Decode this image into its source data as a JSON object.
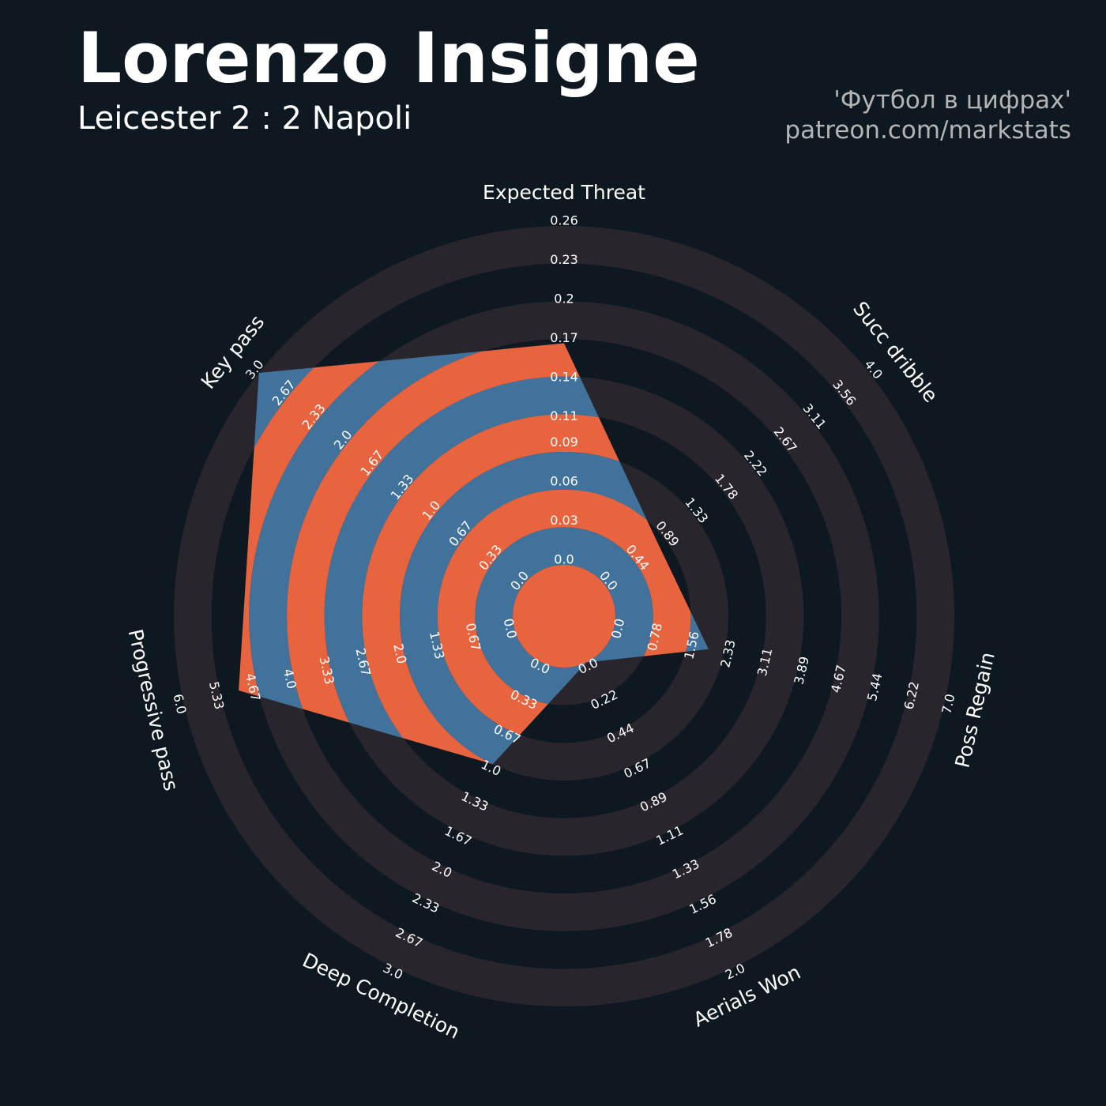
{
  "chart_data": {
    "type": "radar",
    "title": "Lorenzo Insigne",
    "subtitle": "Leicester 2 : 2 Napoli",
    "annotations": [
      "'Футбол в цифрах'",
      "patreon.com/markstats"
    ],
    "params": [
      "Expected Threat",
      "Succ dribble",
      "Poss Regain",
      "Aerials Won",
      "Deep Completion",
      "Progressive pass",
      "Key pass"
    ],
    "values": [
      0.17,
      0.8,
      2.0,
      0,
      1.0,
      5.0,
      3.0
    ],
    "axes": [
      {
        "lim": [
          0,
          0.26
        ],
        "ticks": [
          {
            "value": 0,
            "label": "0.0"
          },
          0.03,
          0.06,
          0.09,
          0.11,
          0.14,
          0.17,
          {
            "value": 0.2,
            "label": "0.2"
          },
          0.23,
          0.26
        ]
      },
      {
        "lim": [
          0,
          4
        ],
        "ticks": [
          {
            "value": 0,
            "label": "0.0"
          },
          0.44,
          0.89,
          1.33,
          1.78,
          2.22,
          2.67,
          3.11,
          3.56,
          {
            "value": 4,
            "label": "4.0"
          }
        ]
      },
      {
        "lim": [
          0,
          7
        ],
        "ticks": [
          {
            "value": 0,
            "label": "0.0"
          },
          0.78,
          1.56,
          2.33,
          3.11,
          3.89,
          4.67,
          5.44,
          6.22,
          {
            "value": 7,
            "label": "7.0"
          }
        ]
      },
      {
        "lim": [
          0,
          2
        ],
        "ticks": [
          {
            "value": 0,
            "label": "0.0"
          },
          0.22,
          0.44,
          0.67,
          0.89,
          1.11,
          1.33,
          1.56,
          1.78,
          {
            "value": 2,
            "label": "2.0"
          }
        ]
      },
      {
        "lim": [
          0,
          3
        ],
        "ticks": [
          {
            "value": 0,
            "label": "0.0"
          },
          0.33,
          0.67,
          {
            "value": 1,
            "label": "1.0"
          },
          1.33,
          1.67,
          {
            "value": 2,
            "label": "2.0"
          },
          2.33,
          2.67,
          {
            "value": 3,
            "label": "3.0"
          }
        ]
      },
      {
        "lim": [
          0,
          6
        ],
        "ticks": [
          {
            "value": 0,
            "label": "0.0"
          },
          0.67,
          1.33,
          {
            "value": 2,
            "label": "2.0"
          },
          2.67,
          3.33,
          {
            "value": 4,
            "label": "4.0"
          },
          4.67,
          5.33,
          {
            "value": 6,
            "label": "6.0"
          }
        ]
      },
      {
        "lim": [
          0,
          3
        ],
        "ticks": [
          {
            "value": 0,
            "label": "0.0"
          },
          0.33,
          0.67,
          {
            "value": 1,
            "label": "1.0"
          },
          1.33,
          1.67,
          {
            "value": 2,
            "label": "2.0"
          },
          2.33,
          2.67,
          {
            "value": 3,
            "label": "3.0"
          }
        ]
      }
    ],
    "colors": {
      "background_ring": "#28252c",
      "fill_inner": "#e8643f",
      "fill_outer": "#41729c"
    }
  }
}
